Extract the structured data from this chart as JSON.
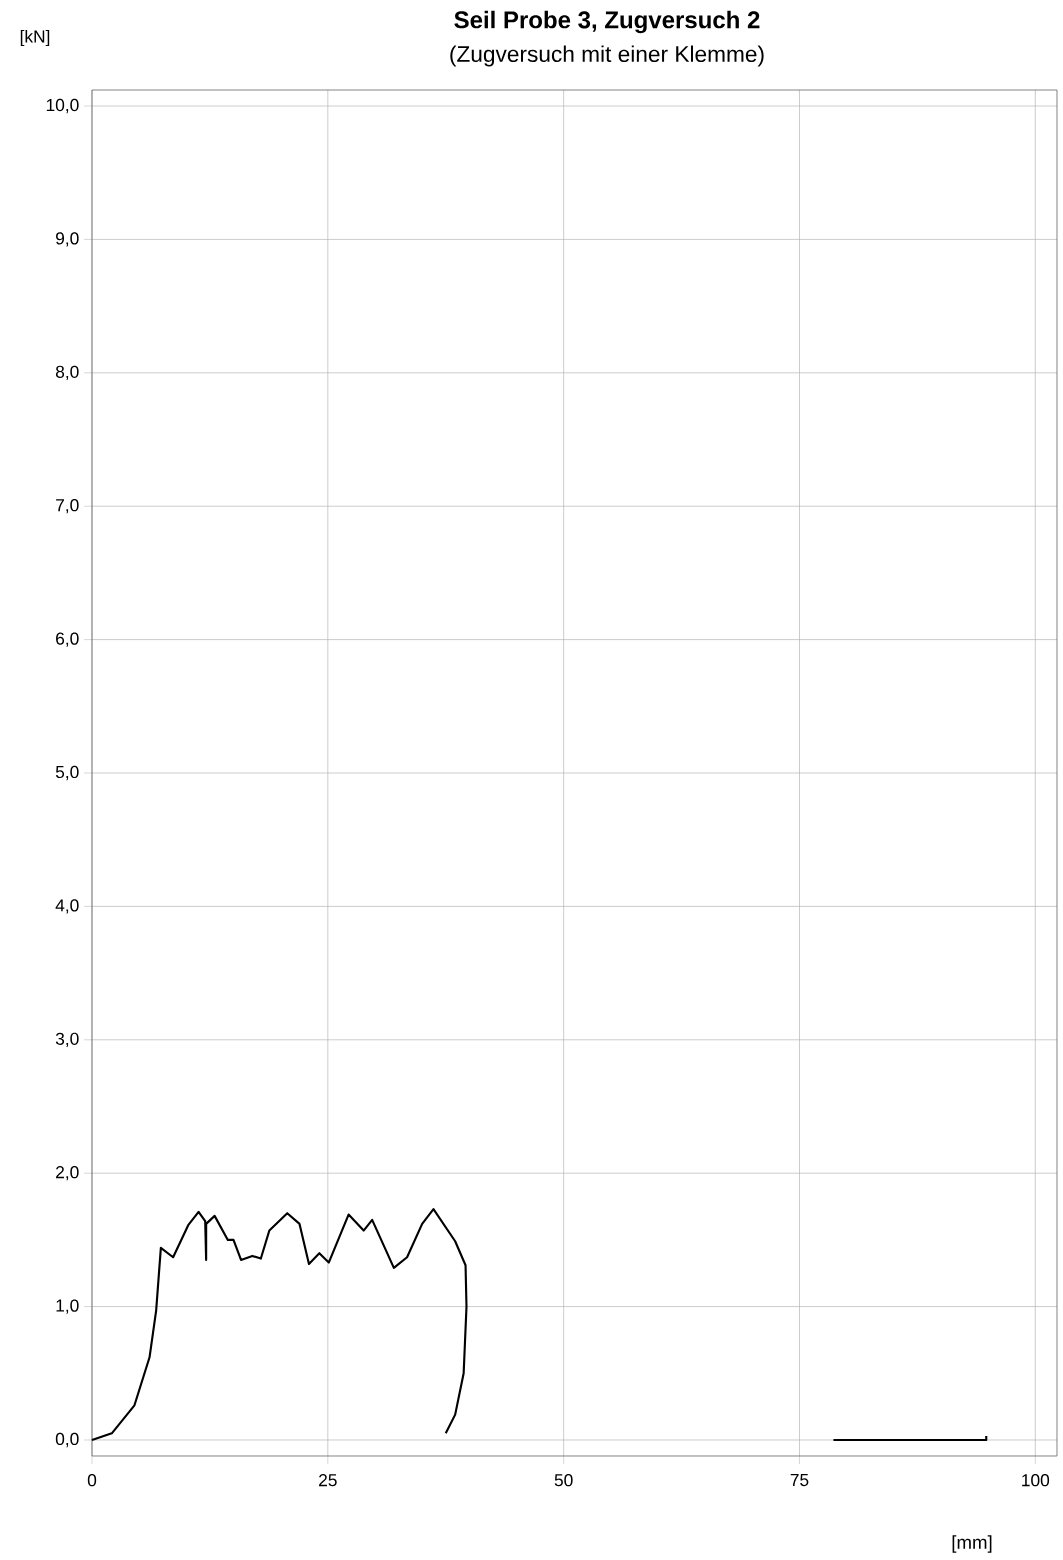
{
  "chart_data": {
    "type": "line",
    "title": "**Seil Probe 3, Zugversuch 2**",
    "subtitle": "(Zugversuch mit einer Klemme)",
    "xlabel": "[mm]",
    "ylabel": "[kN]",
    "xlim": [
      0,
      102.3
    ],
    "ylim": [
      -0.12,
      10.12
    ],
    "xticks": [
      0,
      25,
      50,
      75,
      100
    ],
    "yticks": [
      {
        "value": 0,
        "label": "0,0"
      },
      {
        "value": 1,
        "label": "1,0"
      },
      {
        "value": 2,
        "label": "2,0"
      },
      {
        "value": 3,
        "label": "3,0"
      },
      {
        "value": 4,
        "label": "4,0"
      },
      {
        "value": 5,
        "label": "5,0"
      },
      {
        "value": 6,
        "label": "6,0"
      },
      {
        "value": 7,
        "label": "7,0"
      },
      {
        "value": 8,
        "label": "8,0"
      },
      {
        "value": 9,
        "label": "9,0"
      },
      {
        "value": 10,
        "label": "10,0"
      }
    ],
    "grid": true,
    "marker": "none",
    "line_style": "solid",
    "series": [
      {
        "color": "#000000",
        "x": [
          0,
          2.1,
          4.5,
          6.1,
          6.8,
          7.3,
          8.6,
          10.2,
          11.3,
          12.0,
          12.1,
          12.1,
          13.0,
          14.4,
          15.0,
          15.8,
          17.0,
          17.9,
          18.8,
          20.7,
          22.0,
          23.0,
          24.1,
          25.1,
          27.2,
          28.8,
          29.7,
          32.0,
          33.4,
          35.0,
          36.2,
          38.5,
          39.6,
          39.7,
          39.4,
          38.5,
          37.5,
          null,
          78.6,
          94.8,
          94.8
        ],
        "values": [
          0,
          0.05,
          0.26,
          0.62,
          0.97,
          1.44,
          1.37,
          1.61,
          1.71,
          1.64,
          1.35,
          1.62,
          1.68,
          1.5,
          1.5,
          1.35,
          1.38,
          1.36,
          1.57,
          1.7,
          1.62,
          1.32,
          1.4,
          1.33,
          1.69,
          1.57,
          1.65,
          1.29,
          1.37,
          1.62,
          1.73,
          1.49,
          1.31,
          1.0,
          0.5,
          0.19,
          0.05,
          null,
          0,
          0,
          0.03
        ]
      }
    ]
  }
}
